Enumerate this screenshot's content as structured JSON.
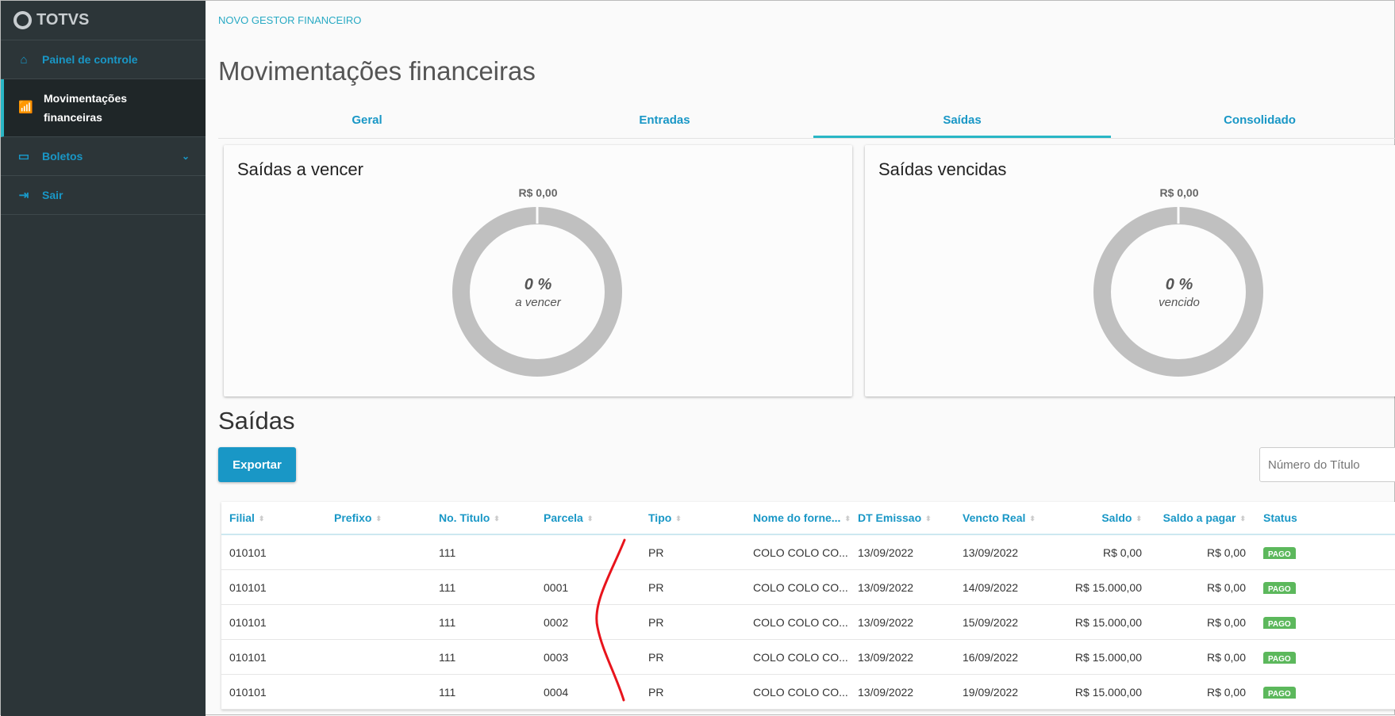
{
  "sidebar": {
    "logo": "TOTVS",
    "items": [
      {
        "label": "Painel de controle",
        "icon": "home-icon"
      },
      {
        "label": "Movimentações financeiras",
        "icon": "bar-chart-icon"
      },
      {
        "label": "Boletos",
        "icon": "monitor-icon"
      },
      {
        "label": "Sair",
        "icon": "logout-icon"
      }
    ]
  },
  "breadcrumb": "NOVO GESTOR FINANCEIRO",
  "page_title": "Movimentações financeiras",
  "tabs": [
    {
      "label": "Geral"
    },
    {
      "label": "Entradas"
    },
    {
      "label": "Saídas",
      "selected": true
    },
    {
      "label": "Consolidado"
    }
  ],
  "cards": [
    {
      "title": "Saídas a vencer",
      "amount": "R$ 0,00",
      "percent": "0 %",
      "caption": "a vencer"
    },
    {
      "title": "Saídas vencidas",
      "amount": "R$ 0,00",
      "percent": "0 %",
      "caption": "vencido"
    }
  ],
  "section_title": "Saídas",
  "export_label": "Exportar",
  "search_placeholder": "Número do Título",
  "colors": {
    "accent": "#1997c6",
    "sidebar": "#2c3538",
    "donut": "#c0c0c0",
    "paid": "#5cb85c"
  },
  "table": {
    "columns": [
      "Filial",
      "Prefixo",
      "No. Titulo",
      "Parcela",
      "Tipo",
      "Nome do forne...",
      "DT Emissao",
      "Vencto Real",
      "Saldo",
      "Saldo a pagar",
      "Status"
    ],
    "rows": [
      [
        "010101",
        "",
        "111",
        "",
        "PR",
        "COLO COLO CO...",
        "13/09/2022",
        "13/09/2022",
        "R$ 0,00",
        "R$ 0,00",
        "PAGO"
      ],
      [
        "010101",
        "",
        "111",
        "0001",
        "PR",
        "COLO COLO CO...",
        "13/09/2022",
        "14/09/2022",
        "R$ 15.000,00",
        "R$ 0,00",
        "PAGO"
      ],
      [
        "010101",
        "",
        "111",
        "0002",
        "PR",
        "COLO COLO CO...",
        "13/09/2022",
        "15/09/2022",
        "R$ 15.000,00",
        "R$ 0,00",
        "PAGO"
      ],
      [
        "010101",
        "",
        "111",
        "0003",
        "PR",
        "COLO COLO CO...",
        "13/09/2022",
        "16/09/2022",
        "R$ 15.000,00",
        "R$ 0,00",
        "PAGO"
      ],
      [
        "010101",
        "",
        "111",
        "0004",
        "PR",
        "COLO COLO CO...",
        "13/09/2022",
        "19/09/2022",
        "R$ 15.000,00",
        "R$ 0,00",
        "PAGO"
      ]
    ]
  }
}
